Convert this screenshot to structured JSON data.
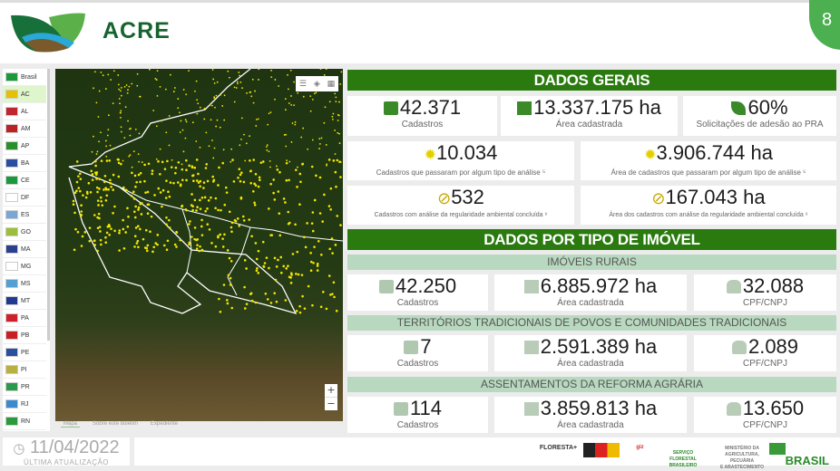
{
  "header": {
    "title": "ACRE",
    "page_number": "8"
  },
  "sidebar": {
    "items": [
      {
        "code": "Brasil",
        "color": "#1a9a3a"
      },
      {
        "code": "AC",
        "color": "#e5c100",
        "active": true
      },
      {
        "code": "AL",
        "color": "#c0262d"
      },
      {
        "code": "AM",
        "color": "#b22"
      },
      {
        "code": "AP",
        "color": "#2a8f2a"
      },
      {
        "code": "BA",
        "color": "#2b4fa0"
      },
      {
        "code": "CE",
        "color": "#1a9a3a"
      },
      {
        "code": "DF",
        "color": "#fff"
      },
      {
        "code": "ES",
        "color": "#7aa6d6"
      },
      {
        "code": "GO",
        "color": "#9bbf3a"
      },
      {
        "code": "MA",
        "color": "#2b3f8f"
      },
      {
        "code": "MG",
        "color": "#fff"
      },
      {
        "code": "MS",
        "color": "#55a0d0"
      },
      {
        "code": "MT",
        "color": "#1f3a90"
      },
      {
        "code": "PA",
        "color": "#d0202a"
      },
      {
        "code": "PB",
        "color": "#c81e24"
      },
      {
        "code": "PE",
        "color": "#2a4fa0"
      },
      {
        "code": "PI",
        "color": "#b8b040"
      },
      {
        "code": "PR",
        "color": "#2a9a4a"
      },
      {
        "code": "RJ",
        "color": "#3a8ad0"
      },
      {
        "code": "RN",
        "color": "#2a9a3a"
      }
    ]
  },
  "map": {
    "tabs": [
      "Mapa",
      "Sobre este boletim",
      "Expediente"
    ],
    "zoom_in": "+",
    "zoom_out": "−"
  },
  "update": {
    "date": "11/04/2022",
    "label": "ÚLTIMA ATUALIZAÇÃO"
  },
  "footer": {
    "logos": [
      "PROJETO FLORESTA+ AMAZÔNIA",
      "COOPERAÇÃO ALEMÃ",
      "giz",
      "SERVIÇO FLORESTAL BRASILEIRO",
      "MINISTÉRIO DA AGRICULTURA, PECUÁRIA E ABASTECIMENTO",
      "PÁTRIA AMADA BRASIL"
    ]
  },
  "dados_gerais": {
    "title": "DADOS GERAIS",
    "cadastros": {
      "value": "42.371",
      "label": "Cadastros"
    },
    "area": {
      "value": "13.337.175 ha",
      "label": "Área cadastrada"
    },
    "pra": {
      "value": "60%",
      "label": "Solicitações de adesão ao PRA"
    },
    "analise": {
      "value": "10.034",
      "label": "Cadastros que passaram por algum tipo de análise ⁵"
    },
    "analise_area": {
      "value": "3.906.744 ha",
      "label": "Área de cadastros que passaram por algum tipo de análise ⁵"
    },
    "concluida": {
      "value": "532",
      "label": "Cadastros com análise da regularidade ambiental concluída ⁶"
    },
    "concluida_area": {
      "value": "167.043 ha",
      "label": "Área dos cadastros com análise da regularidade ambiental concluída ⁶"
    }
  },
  "por_tipo": {
    "title": "DADOS POR TIPO DE IMÓVEL",
    "sections": [
      {
        "title": "IMÓVEIS RURAIS",
        "cadastros": "42.250",
        "area": "6.885.972 ha",
        "cpf": "32.088"
      },
      {
        "title": "TERRITÓRIOS TRADICIONAIS DE POVOS E COMUNIDADES TRADICIONAIS",
        "cadastros": "7",
        "area": "2.591.389 ha",
        "cpf": "2.089"
      },
      {
        "title": "ASSENTAMENTOS DA REFORMA AGRÁRIA",
        "cadastros": "114",
        "area": "3.859.813 ha",
        "cpf": "13.650"
      }
    ],
    "labels": {
      "cadastros": "Cadastros",
      "area": "Área cadastrada",
      "cpf": "CPF/CNPJ"
    }
  }
}
